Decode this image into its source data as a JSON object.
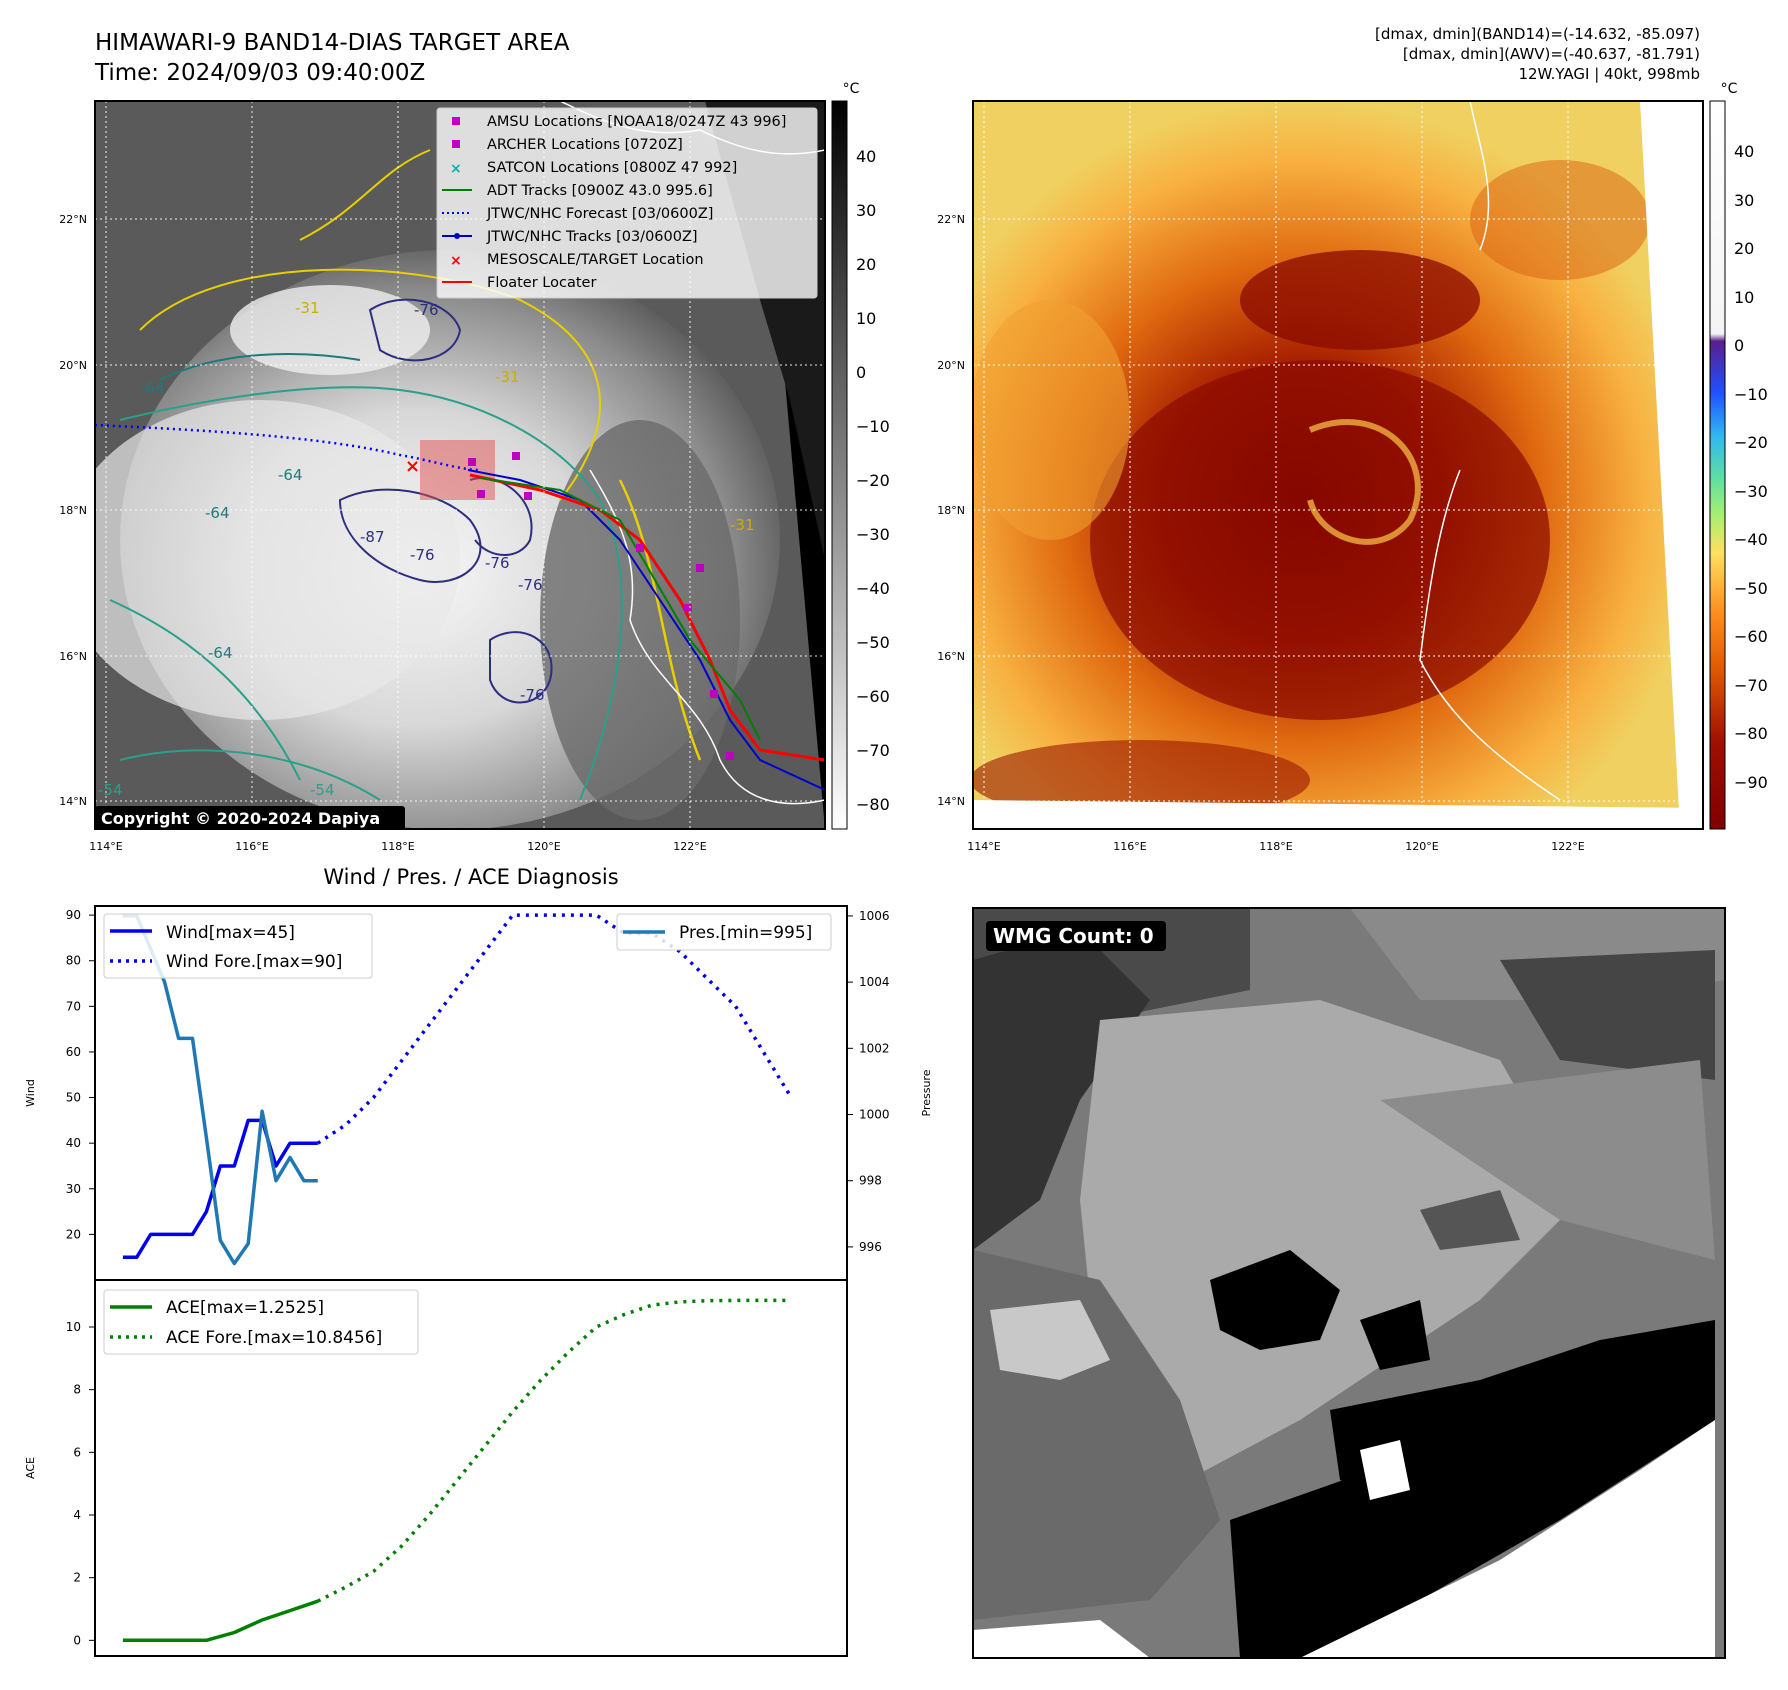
{
  "header": {
    "title_line1": "HIMAWARI-9 BAND14-DIAS TARGET AREA",
    "title_line2": "Time: 2024/09/03 09:40:00Z",
    "info_line1": "[dmax, dmin](BAND14)=(-14.632, -85.097)",
    "info_line2": "[dmax, dmin](AWV)=(-40.637, -81.791)",
    "info_line3": "12W.YAGI | 40kt, 998mb"
  },
  "maps": {
    "lon_ticks": [
      "114°E",
      "116°E",
      "118°E",
      "120°E",
      "122°E"
    ],
    "lat_ticks": [
      "22°N",
      "20°N",
      "18°N",
      "16°N",
      "14°N"
    ],
    "copyright": "Copyright © 2020-2024 Dapiya",
    "contour_labels": [
      "-31",
      "-31",
      "-76",
      "-64",
      "-64",
      "-64",
      "-87",
      "-76",
      "-76",
      "-76",
      "-76",
      "-64",
      "-54",
      "-54",
      "-31"
    ],
    "legend": [
      {
        "label": "AMSU Locations [NOAA18/0247Z 43 996]",
        "symbol": "square",
        "color": "#c000c0"
      },
      {
        "label": "ARCHER Locations [0720Z]",
        "symbol": "square",
        "color": "#c000c0"
      },
      {
        "label": "SATCON Locations [0800Z 47 992]",
        "symbol": "x",
        "color": "#00b4b4"
      },
      {
        "label": "ADT Tracks [0900Z 43.0 995.6]",
        "symbol": "line",
        "color": "#008000"
      },
      {
        "label": "JTWC/NHC Forecast [03/0600Z]",
        "symbol": "dotted",
        "color": "#0000ff"
      },
      {
        "label": "JTWC/NHC Tracks [03/0600Z]",
        "symbol": "line-dot",
        "color": "#0000cc"
      },
      {
        "label": "MESOSCALE/TARGET Location",
        "symbol": "x",
        "color": "#ff0000"
      },
      {
        "label": "Floater Locater",
        "symbol": "line",
        "color": "#ff0000"
      }
    ],
    "colorbar_unit": "°C",
    "gray_colorbar_ticks": [
      "40",
      "30",
      "20",
      "10",
      "0",
      "−10",
      "−20",
      "−30",
      "−40",
      "−50",
      "−60",
      "−70",
      "−80"
    ],
    "color_colorbar_ticks": [
      "40",
      "30",
      "20",
      "10",
      "0",
      "−10",
      "−20",
      "−30",
      "−40",
      "−50",
      "−60",
      "−70",
      "−80",
      "−90"
    ]
  },
  "chart_data": [
    {
      "type": "line",
      "title": "Wind / Pres. / ACE Diagnosis",
      "ylabel": "Wind",
      "y2label": "Pressure",
      "ylim": [
        10,
        92
      ],
      "y2lim": [
        995.0,
        1006.3
      ],
      "yticks": [
        20,
        30,
        40,
        50,
        60,
        70,
        80,
        90
      ],
      "y2ticks": [
        996,
        998,
        1000,
        1002,
        1004,
        1006
      ],
      "xlim": [
        -2,
        52
      ],
      "series": [
        {
          "name": "Wind[max=45]",
          "style": "solid",
          "color": "#0000ee",
          "x": [
            0,
            1,
            2,
            3,
            4,
            5,
            6,
            7,
            8,
            9,
            10,
            11,
            12,
            13,
            14
          ],
          "y": [
            15,
            15,
            20,
            20,
            20,
            20,
            25,
            35,
            35,
            45,
            45,
            35,
            40,
            40,
            40
          ]
        },
        {
          "name": "Wind Fore.[max=90]",
          "style": "dotted",
          "color": "#0000ee",
          "x": [
            14,
            16,
            18,
            20,
            22,
            24,
            26,
            28,
            30,
            32,
            34,
            36,
            38,
            40,
            42,
            44,
            46,
            48
          ],
          "y": [
            40,
            44,
            50,
            58,
            66,
            74,
            82,
            90,
            90,
            90,
            90,
            86,
            86,
            82,
            76,
            70,
            60,
            50
          ]
        },
        {
          "name": "Pres.[min=995]",
          "style": "solid",
          "color": "#1f77b4",
          "axis": "right",
          "x": [
            0,
            1,
            2,
            3,
            4,
            5,
            6,
            7,
            8,
            9,
            10,
            11,
            12,
            13,
            14
          ],
          "y": [
            1006,
            1006,
            1005,
            1004,
            1002.3,
            1002.3,
            999.3,
            996.2,
            995.5,
            996.1,
            1000.1,
            998.0,
            998.7,
            998.0,
            998.0
          ]
        }
      ]
    },
    {
      "type": "line",
      "ylabel": "ACE",
      "ylim": [
        -0.5,
        11.5
      ],
      "yticks": [
        0,
        2,
        4,
        6,
        8,
        10
      ],
      "xlim": [
        -2,
        52
      ],
      "series": [
        {
          "name": "ACE[max=1.2525]",
          "style": "solid",
          "color": "#008000",
          "x": [
            0,
            2,
            4,
            6,
            8,
            10,
            12,
            14
          ],
          "y": [
            0,
            0,
            0,
            0,
            0.25,
            0.65,
            0.95,
            1.25
          ]
        },
        {
          "name": "ACE Fore.[max=10.8456]",
          "style": "dotted",
          "color": "#008000",
          "x": [
            14,
            16,
            18,
            20,
            22,
            24,
            26,
            28,
            30,
            32,
            34,
            36,
            38,
            40,
            42,
            44,
            46,
            48
          ],
          "y": [
            1.25,
            1.7,
            2.2,
            3.0,
            4.0,
            5.1,
            6.2,
            7.3,
            8.3,
            9.2,
            10.0,
            10.4,
            10.7,
            10.8,
            10.84,
            10.85,
            10.85,
            10.85
          ]
        }
      ]
    }
  ],
  "wmg": {
    "label": "WMG Count: 0"
  }
}
